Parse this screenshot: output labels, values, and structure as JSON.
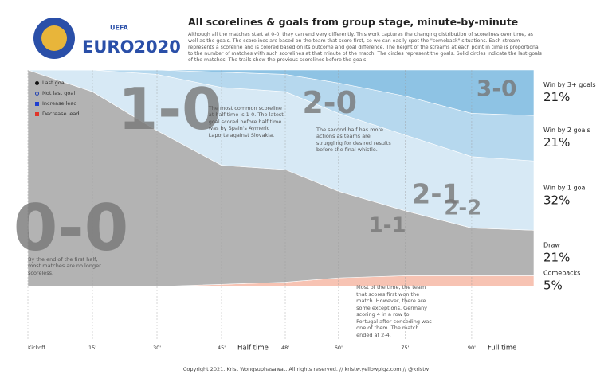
{
  "logo": {
    "small": "UEFA",
    "big": "EURO2020"
  },
  "chart_data": {
    "type": "stream",
    "title": "All scorelines & goals from group stage, minute-by-minute",
    "subtitle": "Although all the matches start at 0-0, they can end very differently. This work captures the changing distribution of scorelines over time, as well as the goals. The scorelines are based on the team that score first, so we can easily spot the \"comeback\" situations. Each stream represents a scoreline and is colored based on its outcome and goal difference. The height of the streams at each point in time is proportional to the number of matches with such scorelines at that minute of the match. The circles represent the goals. Solid circles indicate the last goals of the matches. The trails show the previous scorelines before the goals.",
    "x": [
      0,
      15,
      30,
      45,
      48,
      60,
      75,
      90,
      95
    ],
    "xlim": [
      0,
      95
    ],
    "xticks": [
      {
        "value": 0,
        "label": "Kickoff"
      },
      {
        "value": 15,
        "label": "15'"
      },
      {
        "value": 30,
        "label": "30'"
      },
      {
        "value": 45,
        "label": "45'"
      },
      {
        "value": 48,
        "label": "48'"
      },
      {
        "value": 60,
        "label": "60'"
      },
      {
        "value": 75,
        "label": "75'"
      },
      {
        "value": 90,
        "label": "90'"
      }
    ],
    "period_labels": [
      {
        "value": 45,
        "label": "Half time"
      },
      {
        "value": 90,
        "label": "Full time"
      }
    ],
    "ylim": [
      0,
      100
    ],
    "series": [
      {
        "name": "Comebacks",
        "color": "#f7c3b3",
        "values": [
          0,
          0,
          0,
          1,
          2,
          4,
          5,
          5,
          5
        ],
        "value_labels": [
          null,
          null,
          null,
          null,
          null,
          null,
          null,
          null,
          "5%"
        ]
      },
      {
        "name": "Draw",
        "color": "#b3b3b3",
        "values": [
          100,
          90,
          72,
          55,
          52,
          40,
          30,
          22,
          21
        ],
        "value_labels": [
          null,
          null,
          null,
          null,
          null,
          null,
          null,
          null,
          "21%"
        ]
      },
      {
        "name": "Win by 1 goal",
        "color": "#d7e9f5",
        "values": [
          0,
          10,
          26,
          36,
          36,
          36,
          35,
          33,
          32
        ],
        "value_labels": [
          null,
          null,
          null,
          null,
          null,
          null,
          null,
          null,
          "32%"
        ]
      },
      {
        "name": "Win by 2 goals",
        "color": "#b6d8ee",
        "values": [
          0,
          0,
          2,
          7,
          8,
          14,
          18,
          20,
          21
        ],
        "value_labels": [
          null,
          null,
          null,
          null,
          null,
          null,
          null,
          null,
          "21%"
        ]
      },
      {
        "name": "Win by 3+ goals",
        "color": "#8ec3e4",
        "values": [
          0,
          0,
          0,
          1,
          2,
          6,
          12,
          20,
          21
        ],
        "value_labels": [
          null,
          null,
          null,
          null,
          null,
          null,
          null,
          null,
          "21%"
        ]
      }
    ],
    "legend": [
      {
        "label": "Last goal",
        "color": "#111111",
        "shape": "dot"
      },
      {
        "label": "Not last goal",
        "color": "#1f3fb0",
        "shape": "ring"
      },
      {
        "label": "Increase lead",
        "color": "#1f3fd0",
        "shape": "square"
      },
      {
        "label": "Decrease lead",
        "color": "#e0352a",
        "shape": "square"
      }
    ],
    "scorelines": [
      {
        "label": "0-0",
        "minute": 10,
        "share": 25,
        "size": 80
      },
      {
        "label": "1-0",
        "minute": 33,
        "share": 80,
        "size": 72
      },
      {
        "label": "2-0",
        "minute": 58,
        "share": 84,
        "size": 38
      },
      {
        "label": "3-0",
        "minute": 92,
        "share": 91,
        "size": 28
      },
      {
        "label": "2-1",
        "minute": 82,
        "share": 42,
        "size": 34
      },
      {
        "label": "2-2",
        "minute": 88,
        "share": 36,
        "size": 26
      },
      {
        "label": "1-1",
        "minute": 71,
        "share": 28,
        "size": 26
      }
    ],
    "annotations": [
      {
        "text": "The most common scoreline at half time is 1-0. The latest goal scored before half time was by Spain's Aymeric Laporte against Slovakia.",
        "minute": 42,
        "share": 84
      },
      {
        "text": "The second half has more actions as teams are struggling for desired results before the final whistle.",
        "minute": 55,
        "share": 74
      },
      {
        "text": "By the end of the first half, most matches are no longer scoreless.",
        "minute": 0,
        "share": 14
      },
      {
        "text": "Most of the time, the team that scores first won the match. However, there are some exceptions. Germany scoring 4 in a row to Portugal after conceding was one of them. The match ended at 2-4.",
        "minute": 64,
        "share": 1
      }
    ]
  },
  "footer": "Copyright 2021. Krist Wongsuphasawat. All rights reserved.  // kristw.yellowpigz.com // @kristw"
}
